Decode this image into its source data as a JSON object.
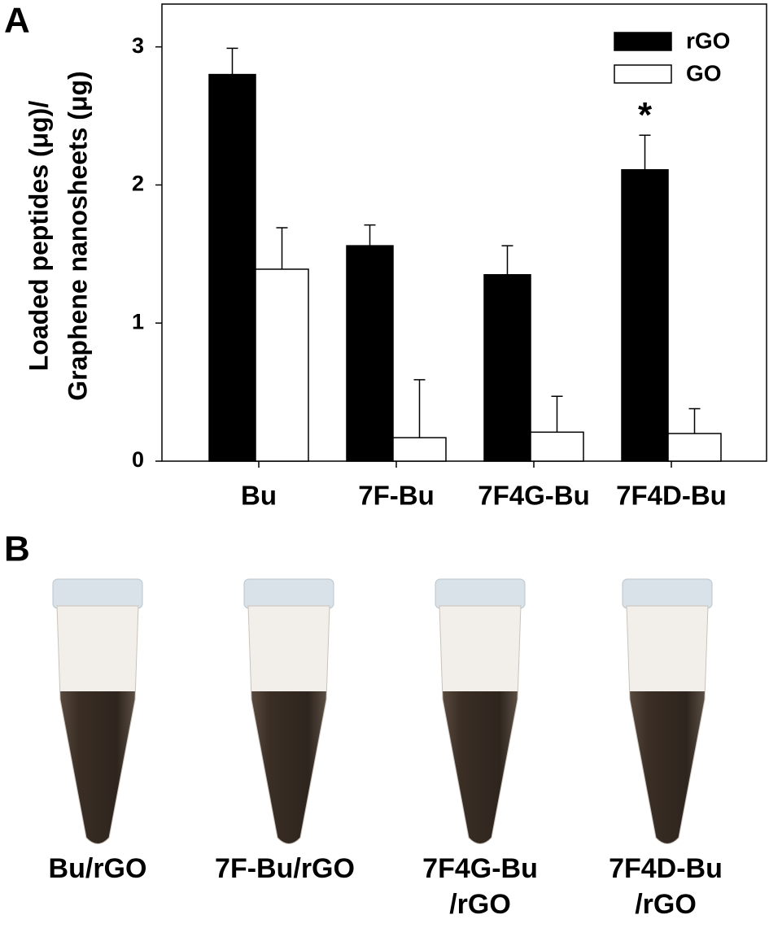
{
  "chart_data": {
    "type": "bar",
    "ylabel": [
      "Loaded peptides (μg)/",
      "Graphene nanosheets (μg)"
    ],
    "categories": [
      "Bu",
      "7F-Bu",
      "7F4G-Bu",
      "7F4D-Bu"
    ],
    "series": [
      {
        "name": "rGO",
        "color": "#000000",
        "values": [
          2.8,
          1.56,
          1.35,
          2.11
        ],
        "errors": [
          0.19,
          0.15,
          0.21,
          0.25
        ]
      },
      {
        "name": "GO",
        "color": "#ffffff",
        "values": [
          1.39,
          0.17,
          0.21,
          0.2
        ],
        "errors": [
          0.3,
          0.42,
          0.26,
          0.18
        ]
      }
    ],
    "ylim": [
      0,
      3.31
    ],
    "yticks": [
      0,
      1,
      2,
      3
    ],
    "grid": false,
    "legend": "upper right",
    "annotations": [
      {
        "text": "*",
        "category": 3,
        "series": 0
      }
    ]
  },
  "panel_labels": [
    "A",
    "B"
  ],
  "photo_captions": [
    [
      "Bu/rGO"
    ],
    [
      "7F-Bu/rGO"
    ],
    [
      "7F4G-Bu",
      "/rGO"
    ],
    [
      "7F4D-Bu",
      "/rGO"
    ]
  ]
}
